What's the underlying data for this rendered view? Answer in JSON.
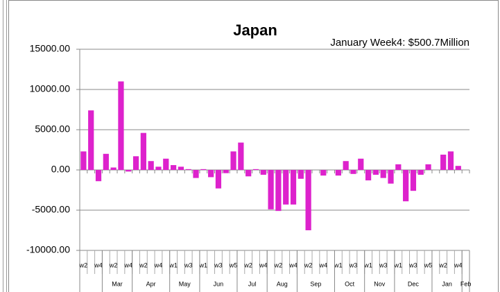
{
  "chart_data": {
    "type": "bar",
    "title": "Japan",
    "annotation": "January Week4: $500.7Million",
    "categories": [
      "w2",
      null,
      "w4",
      null,
      "w2",
      null,
      "w4",
      null,
      "w2",
      null,
      "w4",
      null,
      "w1",
      null,
      "w3",
      null,
      "w1",
      null,
      "w3",
      null,
      "w5",
      null,
      "w2",
      null,
      "w4",
      null,
      "w2",
      null,
      "w4",
      null,
      "w2",
      null,
      "w4",
      null,
      "w1",
      null,
      "w3",
      null,
      "w1",
      null,
      "w3",
      null,
      "w1",
      null,
      "w3",
      null,
      "w5",
      null,
      "w2",
      null,
      "w4",
      null
    ],
    "month_groups": [
      {
        "name": null,
        "weeks": 3
      },
      {
        "name": "Mar",
        "weeks": 4
      },
      {
        "name": "Apr",
        "weeks": 5
      },
      {
        "name": "May",
        "weeks": 4
      },
      {
        "name": "Jun",
        "weeks": 5
      },
      {
        "name": "Jul",
        "weeks": 4
      },
      {
        "name": "Aug",
        "weeks": 4
      },
      {
        "name": "Sep",
        "weeks": 5
      },
      {
        "name": "Oct",
        "weeks": 4
      },
      {
        "name": "Nov",
        "weeks": 4
      },
      {
        "name": "Dec",
        "weeks": 5
      },
      {
        "name": "Jan",
        "weeks": 4
      },
      {
        "name": "Feb",
        "weeks": 1
      }
    ],
    "values": [
      2300,
      7400,
      -1400,
      2000,
      300,
      11000,
      -200,
      1700,
      4600,
      1100,
      400,
      1400,
      600,
      400,
      100,
      -1000,
      100,
      -900,
      -2300,
      -400,
      2300,
      3400,
      -800,
      100,
      -600,
      -4900,
      -5100,
      -4300,
      -4300,
      -1100,
      -7500,
      0,
      -700,
      0,
      -700,
      1100,
      -500,
      1400,
      -1300,
      -600,
      -1000,
      -1700,
      700,
      -3900,
      -2600,
      -600,
      700,
      0,
      1900,
      2300,
      500.7,
      0
    ],
    "color": "#dd22cc",
    "ylim": [
      -10000,
      15000
    ],
    "yticks": [
      {
        "value": -10000,
        "label": "-10000.00"
      },
      {
        "value": -5000,
        "label": "-5000.00"
      },
      {
        "value": 0,
        "label": "0.00"
      },
      {
        "value": 5000,
        "label": "5000.00"
      },
      {
        "value": 10000,
        "label": "10000.00"
      },
      {
        "value": 15000,
        "label": "15000.00"
      }
    ],
    "grid": true
  }
}
